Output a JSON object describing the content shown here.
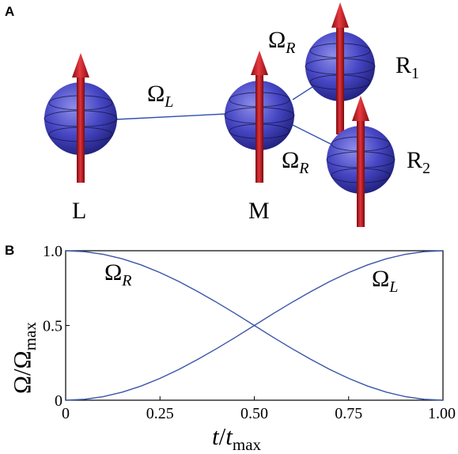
{
  "panel_a": {
    "letter": "A",
    "labels": {
      "omega_l": {
        "base": "Ω",
        "sub": "L"
      },
      "omega_r_top": {
        "base": "Ω",
        "sub": "R"
      },
      "omega_r_bottom": {
        "base": "Ω",
        "sub": "R"
      },
      "spin_l": "L",
      "spin_m": "M",
      "spin_r1": {
        "base": "R",
        "sub": "1"
      },
      "spin_r2": {
        "base": "R",
        "sub": "2"
      }
    },
    "colors": {
      "sphere": "#3a3ab4",
      "arrow": "#c0141e",
      "link": "#3050b0"
    }
  },
  "panel_b": {
    "letter": "B",
    "curve_labels": {
      "omega_r": {
        "base": "Ω",
        "sub": "R"
      },
      "omega_l": {
        "base": "Ω",
        "sub": "L"
      }
    }
  },
  "chart_data": {
    "type": "line",
    "xlabel": "t/tmax",
    "ylabel": "Ω/Ωmax",
    "xlim": [
      0,
      1
    ],
    "ylim": [
      0,
      1
    ],
    "x_ticks": [
      "0",
      "0.25",
      "0.50",
      "0.75",
      "1.00"
    ],
    "y_ticks": [
      "0",
      "0.5",
      "1.0"
    ],
    "x": [
      0,
      0.05,
      0.1,
      0.15,
      0.2,
      0.25,
      0.3,
      0.35,
      0.4,
      0.45,
      0.5,
      0.55,
      0.6,
      0.65,
      0.7,
      0.75,
      0.8,
      0.85,
      0.9,
      0.95,
      1.0
    ],
    "series": [
      {
        "name": "ΩR",
        "color": "#3a55a8",
        "values": [
          1,
          0.994,
          0.976,
          0.946,
          0.905,
          0.854,
          0.794,
          0.727,
          0.655,
          0.579,
          0.5,
          0.421,
          0.345,
          0.273,
          0.206,
          0.146,
          0.095,
          0.054,
          0.024,
          0.006,
          0
        ]
      },
      {
        "name": "ΩL",
        "color": "#3a55a8",
        "values": [
          0,
          0.006,
          0.024,
          0.054,
          0.095,
          0.146,
          0.206,
          0.273,
          0.345,
          0.421,
          0.5,
          0.579,
          0.655,
          0.727,
          0.794,
          0.854,
          0.905,
          0.946,
          0.976,
          0.994,
          1
        ]
      }
    ]
  }
}
